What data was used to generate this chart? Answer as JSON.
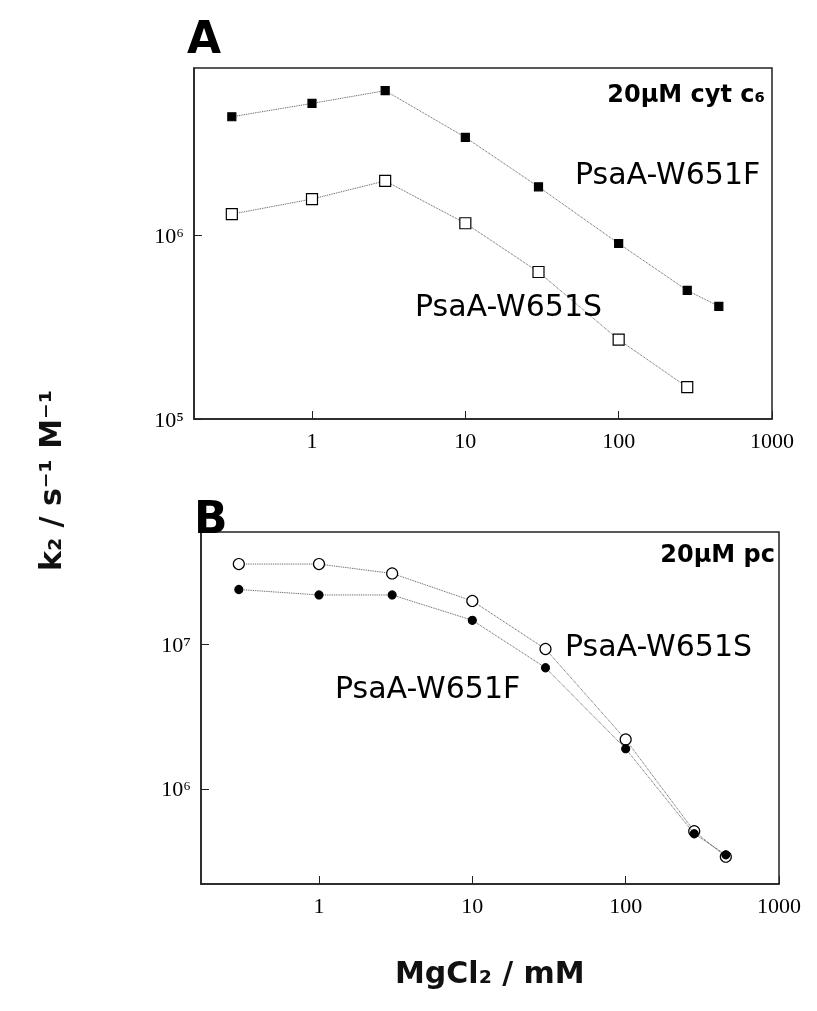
{
  "chart_data": [
    {
      "type": "line",
      "title": "A",
      "ylabel": "k₂ / s⁻¹ M⁻¹",
      "log": "xy",
      "line_style": "dotted",
      "grid": false,
      "legend": false,
      "x": [
        0.3,
        1,
        3,
        10,
        30,
        100,
        280,
        450
      ],
      "series": [
        {
          "name": "PsaA-W651F",
          "color": "#000000",
          "marker": "square",
          "values": [
            4400000,
            5200000,
            6100000,
            3400000,
            1830000,
            900000,
            500000,
            410000
          ]
        },
        {
          "name": "PsaA-W651S",
          "color": "#000000",
          "marker": "square",
          "x": [
            0.3,
            1,
            3,
            10,
            30,
            100,
            280
          ],
          "values": [
            1300000,
            1570000,
            1970000,
            1160000,
            630000,
            270000,
            149000
          ]
        }
      ],
      "annotations": [
        "20μM cyt c₆"
      ],
      "xlim": [
        0.17,
        1000
      ],
      "xticks": [
        1,
        10,
        100,
        1000
      ],
      "ylim": [
        100000,
        8100000
      ],
      "yticks": [
        {
          "value": 100000,
          "label": "10⁵"
        },
        {
          "value": 1000000,
          "label": "10⁶"
        }
      ]
    },
    {
      "type": "line",
      "title": "B",
      "xlabel": "MgCl₂ / mM",
      "log": "xy",
      "line_style": "dotted",
      "grid": false,
      "legend": false,
      "x": [
        0.3,
        1,
        3,
        10,
        30,
        100,
        280,
        450
      ],
      "series": [
        {
          "name": "PsaA-W651S",
          "color": "#000000",
          "marker": "circle",
          "values": [
            36000000,
            36000000,
            31000000,
            20000000,
            9300000,
            2200000,
            510000,
            340000
          ]
        },
        {
          "name": "PsaA-W651F",
          "color": "#000000",
          "marker": "circle",
          "values": [
            24000000,
            22000000,
            22000000,
            14700000,
            6900000,
            1900000,
            490000,
            350000
          ]
        }
      ],
      "annotations": [
        "20μM pc"
      ],
      "xlim": [
        0.17,
        1000
      ],
      "xticks": [
        1,
        10,
        100,
        1000
      ],
      "ylim": [
        220000,
        60000000
      ],
      "yticks": [
        {
          "value": 1000000,
          "label": "10⁶"
        },
        {
          "value": 10000000,
          "label": "10⁷"
        }
      ]
    }
  ]
}
